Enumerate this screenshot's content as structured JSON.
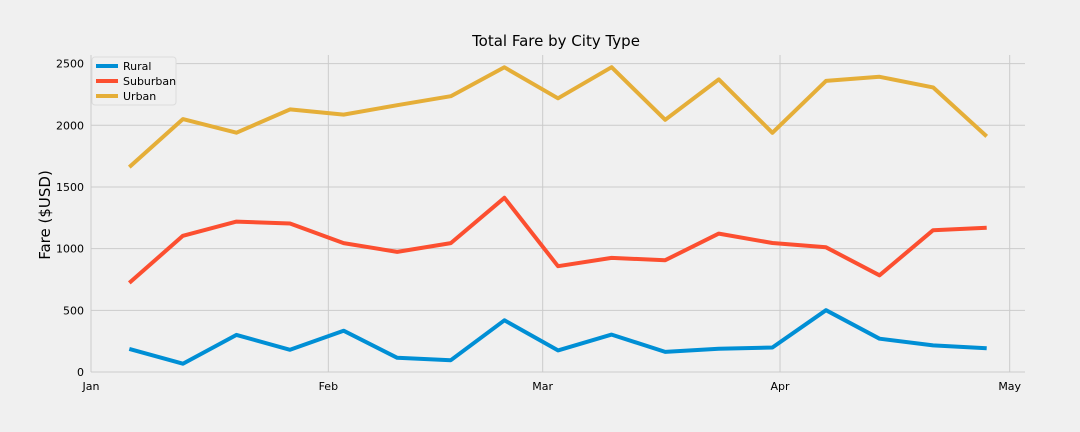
{
  "chart_data": {
    "type": "line",
    "title": "Total Fare by City Type",
    "xlabel": "",
    "ylabel": "Fare ($USD)",
    "x": [
      "2019-01-06",
      "2019-01-13",
      "2019-01-20",
      "2019-01-27",
      "2019-02-03",
      "2019-02-10",
      "2019-02-17",
      "2019-02-24",
      "2019-03-03",
      "2019-03-10",
      "2019-03-17",
      "2019-03-24",
      "2019-03-31",
      "2019-04-07",
      "2019-04-14",
      "2019-04-21",
      "2019-04-28"
    ],
    "xlim": [
      "2019-01-01",
      "2019-05-03"
    ],
    "xticks": [
      {
        "date": "2019-01-01",
        "label": "Jan"
      },
      {
        "date": "2019-02-01",
        "label": "Feb"
      },
      {
        "date": "2019-03-01",
        "label": "Mar"
      },
      {
        "date": "2019-04-01",
        "label": "Apr"
      },
      {
        "date": "2019-05-01",
        "label": "May"
      }
    ],
    "ylim": [
      0,
      2570
    ],
    "yticks": [
      0,
      500,
      1000,
      1500,
      2000,
      2500
    ],
    "grid": true,
    "legend_position": "top-left",
    "series": [
      {
        "name": "Rural",
        "color": "#008fd5",
        "values": [
          187,
          67,
          301,
          180,
          335,
          115,
          96,
          419,
          175,
          303,
          163,
          189,
          199,
          501,
          270,
          216,
          192
        ]
      },
      {
        "name": "Suburban",
        "color": "#fc4f30",
        "values": [
          722,
          1104,
          1219,
          1204,
          1045,
          974,
          1045,
          1412,
          858,
          925,
          906,
          1122,
          1046,
          1011,
          784,
          1150,
          1169
        ]
      },
      {
        "name": "Urban",
        "color": "#e5ae38",
        "values": [
          1661,
          2050,
          1940,
          2129,
          2087,
          2163,
          2236,
          2470,
          2219,
          2471,
          2045,
          2372,
          1939,
          2360,
          2393,
          2307,
          1910
        ]
      }
    ]
  }
}
